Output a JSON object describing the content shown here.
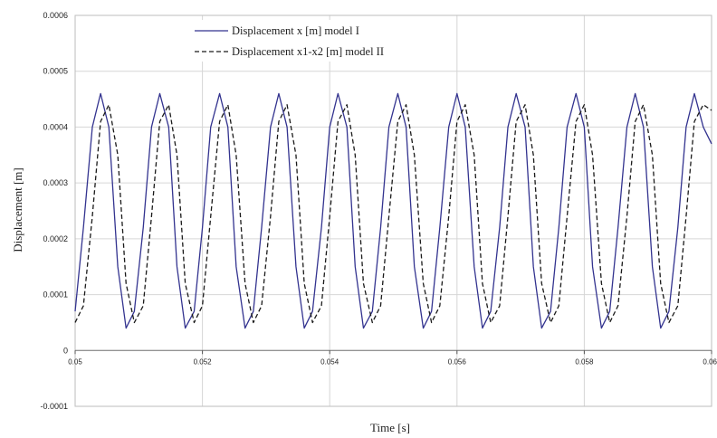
{
  "chart_data": {
    "type": "line",
    "title": "",
    "xlabel": "Time [s]",
    "ylabel": "Displacement [m]",
    "xlim": [
      0.05,
      0.06
    ],
    "ylim": [
      -0.0001,
      0.0006
    ],
    "grid": true,
    "legend_position": "top-center",
    "x_ticks": [
      "0.05",
      "0.052",
      "0.054",
      "0.056",
      "0.058",
      "0.06"
    ],
    "y_ticks": [
      "-0.0001",
      "0",
      "0.0001",
      "0.0002",
      "0.0003",
      "0.0004",
      "0.0005",
      "0.0006"
    ],
    "series": [
      {
        "name": "Displacement x [m] model I",
        "style": "solid",
        "color": "#33338f",
        "x": [
          0.05,
          0.05013,
          0.05027,
          0.0504,
          0.05053,
          0.05067,
          0.0508,
          0.05093,
          0.05107,
          0.0512,
          0.05133,
          0.05147,
          0.0516,
          0.05173,
          0.05187,
          0.052,
          0.05213,
          0.05227,
          0.0524,
          0.05253,
          0.05267,
          0.0528,
          0.05293,
          0.05307,
          0.0532,
          0.05333,
          0.05347,
          0.0536,
          0.05373,
          0.05387,
          0.054,
          0.05413,
          0.05427,
          0.0544,
          0.05453,
          0.05467,
          0.0548,
          0.05493,
          0.05507,
          0.0552,
          0.05533,
          0.05547,
          0.0556,
          0.05573,
          0.05587,
          0.056,
          0.05613,
          0.05627,
          0.0564,
          0.05653,
          0.05667,
          0.0568,
          0.05693,
          0.05707,
          0.0572,
          0.05733,
          0.05747,
          0.0576,
          0.05773,
          0.05787,
          0.058,
          0.05813,
          0.05827,
          0.0584,
          0.05853,
          0.05867,
          0.0588,
          0.05893,
          0.05907,
          0.0592,
          0.05933,
          0.05947,
          0.0596,
          0.05973,
          0.05987,
          0.06
        ],
        "y": [
          7e-05,
          0.00022,
          0.0004,
          0.00046,
          0.0004,
          0.00015,
          4e-05,
          7e-05,
          0.00022,
          0.0004,
          0.00046,
          0.0004,
          0.00015,
          4e-05,
          7e-05,
          0.00022,
          0.0004,
          0.00046,
          0.0004,
          0.00015,
          4e-05,
          7e-05,
          0.00022,
          0.0004,
          0.00046,
          0.0004,
          0.00015,
          4e-05,
          7e-05,
          0.00022,
          0.0004,
          0.00046,
          0.0004,
          0.00015,
          4e-05,
          7e-05,
          0.00022,
          0.0004,
          0.00046,
          0.0004,
          0.00015,
          4e-05,
          7e-05,
          0.00022,
          0.0004,
          0.00046,
          0.0004,
          0.00015,
          4e-05,
          7e-05,
          0.00022,
          0.0004,
          0.00046,
          0.0004,
          0.00015,
          4e-05,
          7e-05,
          0.00022,
          0.0004,
          0.00046,
          0.0004,
          0.00015,
          4e-05,
          7e-05,
          0.00022,
          0.0004,
          0.00046,
          0.0004,
          0.00015,
          4e-05,
          7e-05,
          0.00022,
          0.0004,
          0.00046,
          0.0004,
          0.00037
        ]
      },
      {
        "name": "Displacement x1-x2 [m] model II",
        "style": "dashed",
        "color": "#1a1a1a",
        "x": [
          0.05,
          0.05013,
          0.05027,
          0.0504,
          0.05053,
          0.05067,
          0.0508,
          0.05093,
          0.05107,
          0.0512,
          0.05133,
          0.05147,
          0.0516,
          0.05173,
          0.05187,
          0.052,
          0.05213,
          0.05227,
          0.0524,
          0.05253,
          0.05267,
          0.0528,
          0.05293,
          0.05307,
          0.0532,
          0.05333,
          0.05347,
          0.0536,
          0.05373,
          0.05387,
          0.054,
          0.05413,
          0.05427,
          0.0544,
          0.05453,
          0.05467,
          0.0548,
          0.05493,
          0.05507,
          0.0552,
          0.05533,
          0.05547,
          0.0556,
          0.05573,
          0.05587,
          0.056,
          0.05613,
          0.05627,
          0.0564,
          0.05653,
          0.05667,
          0.0568,
          0.05693,
          0.05707,
          0.0572,
          0.05733,
          0.05747,
          0.0576,
          0.05773,
          0.05787,
          0.058,
          0.05813,
          0.05827,
          0.0584,
          0.05853,
          0.05867,
          0.0588,
          0.05893,
          0.05907,
          0.0592,
          0.05933,
          0.05947,
          0.0596,
          0.05973,
          0.05987,
          0.06
        ],
        "y": [
          5e-05,
          8e-05,
          0.00024,
          0.00041,
          0.00044,
          0.00035,
          0.00012,
          5e-05,
          8e-05,
          0.00024,
          0.00041,
          0.00044,
          0.00035,
          0.00012,
          5e-05,
          8e-05,
          0.00024,
          0.00041,
          0.00044,
          0.00035,
          0.00012,
          5e-05,
          8e-05,
          0.00024,
          0.00041,
          0.00044,
          0.00035,
          0.00012,
          5e-05,
          8e-05,
          0.00024,
          0.00041,
          0.00044,
          0.00035,
          0.00012,
          5e-05,
          8e-05,
          0.00024,
          0.00041,
          0.00044,
          0.00035,
          0.00012,
          5e-05,
          8e-05,
          0.00024,
          0.00041,
          0.00044,
          0.00035,
          0.00012,
          5e-05,
          8e-05,
          0.00024,
          0.00041,
          0.00044,
          0.00035,
          0.00012,
          5e-05,
          8e-05,
          0.00024,
          0.00041,
          0.00044,
          0.00035,
          0.00012,
          5e-05,
          8e-05,
          0.00024,
          0.00041,
          0.00044,
          0.00035,
          0.00012,
          5e-05,
          8e-05,
          0.00024,
          0.00041,
          0.00044,
          0.00043
        ]
      }
    ]
  }
}
